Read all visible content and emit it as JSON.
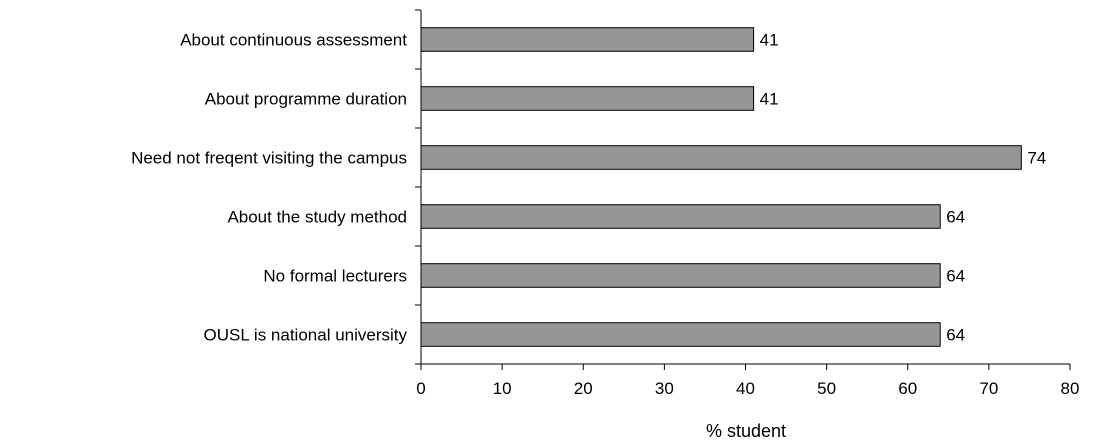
{
  "chart_data": {
    "type": "bar",
    "orientation": "horizontal",
    "title": "",
    "xlabel": "% student",
    "ylabel": "",
    "categories": [
      "About continuous assessment",
      "About programme duration",
      "Need not freqent visiting the campus",
      "About the study method",
      "No formal lecturers",
      "OUSL is national university"
    ],
    "values": [
      41,
      41,
      74,
      64,
      64,
      64
    ],
    "xlim": [
      0,
      80
    ],
    "xticks": [
      0,
      10,
      20,
      30,
      40,
      50,
      60,
      70,
      80
    ],
    "grid": false,
    "legend": "none",
    "bar_color": "#969696",
    "bar_edge_color": "#000000"
  }
}
